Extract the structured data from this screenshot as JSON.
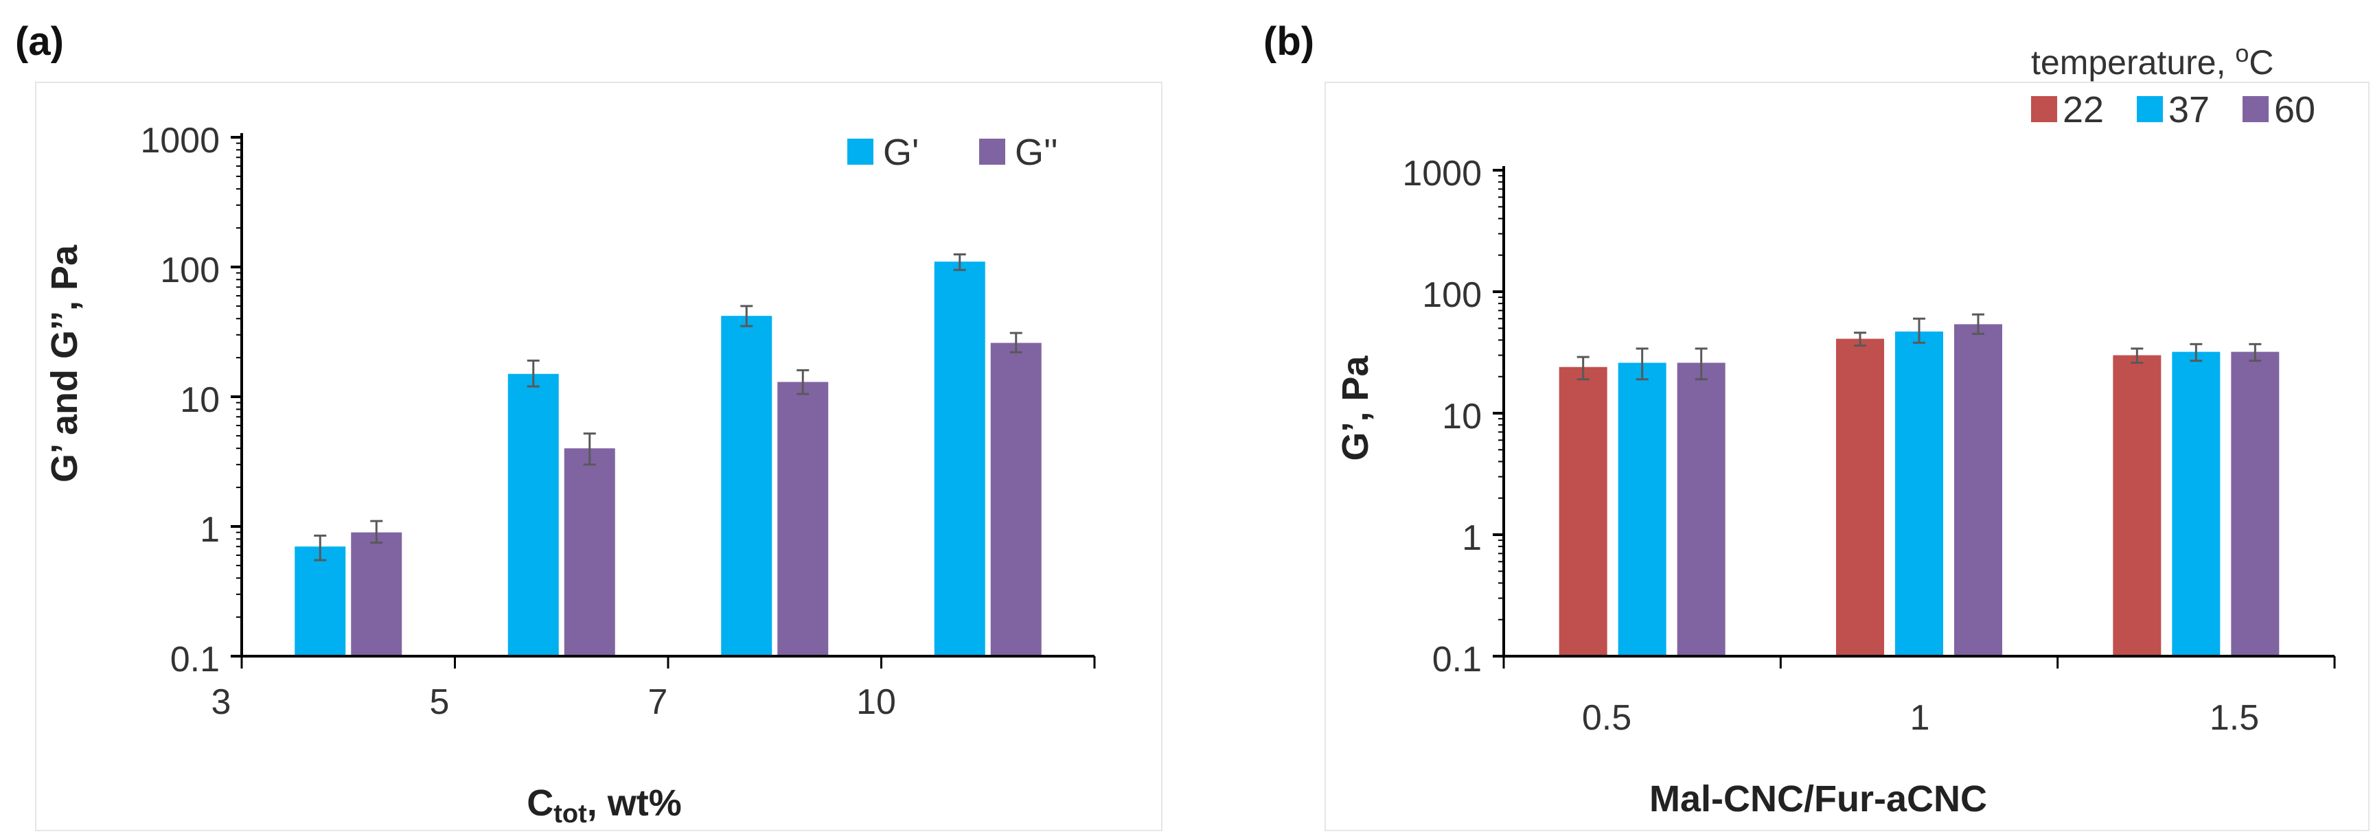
{
  "chart_data": [
    {
      "type": "bar",
      "panel_label": "(a)",
      "title": "",
      "xlabel": "C",
      "xlabel_sub": "tot",
      "xlabel_suffix": ", wt%",
      "ylabel": "G’ and G’’, Pa",
      "yscale": "log",
      "ylim": [
        0.1,
        1000
      ],
      "yticks": [
        "0.1",
        "1",
        "10",
        "100",
        "1000"
      ],
      "categories": [
        "3",
        "5",
        "7",
        "10"
      ],
      "grid": false,
      "legend_position": "top-right",
      "series": [
        {
          "name": "G'",
          "color": "#00b0f0",
          "values": [
            0.7,
            15,
            42,
            110
          ],
          "err_low": [
            0.55,
            12,
            35,
            95
          ],
          "err_high": [
            0.85,
            19,
            50,
            125
          ]
        },
        {
          "name": "G''",
          "color": "#8064a2",
          "values": [
            0.9,
            4,
            13,
            26
          ],
          "err_low": [
            0.75,
            3,
            10.5,
            22
          ],
          "err_high": [
            1.1,
            5.2,
            16,
            31
          ]
        }
      ]
    },
    {
      "type": "bar",
      "panel_label": "(b)",
      "title": "",
      "xlabel": "Mal-CNC/Fur-aCNC",
      "ylabel": "G’, Pa",
      "yscale": "log",
      "ylim": [
        0.1,
        1000
      ],
      "yticks": [
        "0.1",
        "1",
        "10",
        "100",
        "1000"
      ],
      "categories": [
        "0.5",
        "1",
        "1.5"
      ],
      "grid": false,
      "legend_position": "top-right",
      "legend_title": "temperature, ",
      "legend_title_sup": "o",
      "legend_title_suffix": "C",
      "series": [
        {
          "name": "22",
          "color": "#c0504d",
          "values": [
            24,
            41,
            30
          ],
          "err_low": [
            19,
            36,
            26
          ],
          "err_high": [
            29,
            46,
            34
          ]
        },
        {
          "name": "37",
          "color": "#00b0f0",
          "values": [
            26,
            47,
            32
          ],
          "err_low": [
            19,
            38,
            27
          ],
          "err_high": [
            34,
            60,
            37
          ]
        },
        {
          "name": "60",
          "color": "#8064a2",
          "values": [
            26,
            54,
            32
          ],
          "err_low": [
            19,
            45,
            27
          ],
          "err_high": [
            34,
            65,
            37
          ]
        }
      ]
    }
  ]
}
